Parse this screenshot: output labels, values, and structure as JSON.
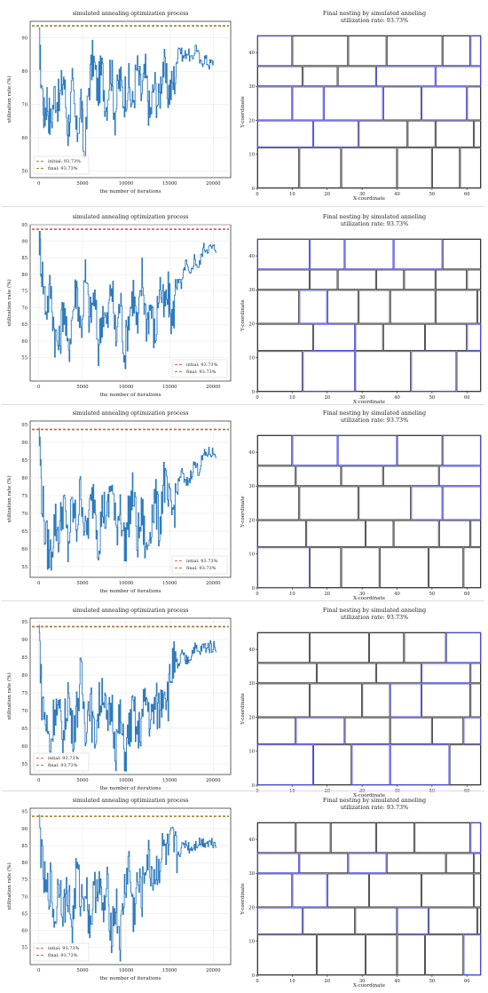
{
  "figures": [
    {
      "sa": {
        "type": "line",
        "title": "simulated annealing optimization process",
        "xlabel": "the number of iterations",
        "ylabel": "utilization rate (%)",
        "xlim": [
          -1000,
          22000
        ],
        "ylim": [
          48,
          95
        ],
        "xticks": [
          0,
          5000,
          10000,
          15000,
          20000
        ],
        "yticks": [
          50,
          60,
          70,
          80,
          90
        ],
        "grid": true,
        "legend_position": "lower-left",
        "legend": [
          "initial: 93.73%",
          "final: 93.73%"
        ],
        "reference_lines": [
          {
            "name": "initial",
            "value": 93.73,
            "color": "#e0625a"
          },
          {
            "name": "final",
            "value": 93.73,
            "color": "#8a8a2a"
          }
        ],
        "line_color": "#2f7bbd",
        "series": {
          "x": [
            0,
            200,
            600,
            900,
            1300,
            1800,
            2300,
            2800,
            3300,
            3800,
            4300,
            4800,
            5200,
            5700,
            6200,
            6700,
            7200,
            7700,
            8200,
            8700,
            9200,
            9700,
            10200,
            10700,
            11200,
            11700,
            12200,
            12700,
            13200,
            13700,
            14200,
            14700,
            15200,
            15700,
            16000,
            16500,
            17000,
            17500,
            18000,
            18500,
            19000,
            19500,
            20000
          ],
          "y": [
            93,
            80,
            66,
            72,
            64,
            74,
            70,
            79,
            62,
            75,
            60,
            72,
            52,
            76,
            84,
            74,
            80,
            70,
            82,
            67,
            78,
            72,
            77,
            69,
            81,
            73,
            79,
            66,
            76,
            70,
            83,
            74,
            75,
            80,
            88,
            84,
            86,
            83,
            88,
            82,
            84,
            82,
            83
          ]
        }
      },
      "nest": {
        "title_line1": "Final nesting by simulated anneling",
        "title_line2": "utilization rate: 93.73%",
        "xlabel": "X-coordinate",
        "ylabel": "Y-coordinate",
        "xlim": [
          0,
          64
        ],
        "ylim": [
          0,
          45
        ],
        "xticks": [
          0,
          10,
          20,
          30,
          40,
          50,
          60
        ],
        "yticks": [
          0,
          10,
          20,
          30,
          40
        ]
      }
    },
    {
      "sa": {
        "type": "line",
        "title": "simulated annealing optimization process",
        "xlabel": "the number of iterations",
        "ylabel": "utilization rate (%)",
        "xlim": [
          -1000,
          22000
        ],
        "ylim": [
          48,
          95
        ],
        "xticks": [
          0,
          5000,
          10000,
          15000,
          20000
        ],
        "yticks": [
          55,
          60,
          65,
          70,
          75,
          80,
          85,
          90,
          95
        ],
        "grid": true,
        "legend_position": "lower-right",
        "legend": [
          "intial: 93.73%",
          "final: 93.73%"
        ],
        "reference_lines": [
          {
            "name": "intial",
            "value": 93.73,
            "color": "#e0625a"
          },
          {
            "name": "final",
            "value": 93.73,
            "color": "#8a8a2a"
          }
        ],
        "line_color": "#2f7bbd",
        "series": {
          "x": [
            0,
            300,
            800,
            1300,
            1800,
            2300,
            2800,
            3300,
            3800,
            4300,
            4800,
            5300,
            5800,
            6300,
            6800,
            7300,
            7800,
            8300,
            8800,
            9300,
            9800,
            10300,
            10800,
            11300,
            11800,
            12300,
            12800,
            13300,
            13800,
            14300,
            14800,
            15300,
            15800,
            16300,
            16800,
            17300,
            17800,
            18300,
            18800,
            19300,
            19800,
            20300
          ],
          "y": [
            93,
            82,
            70,
            76,
            62,
            58,
            72,
            56,
            68,
            77,
            63,
            80,
            66,
            74,
            58,
            70,
            64,
            78,
            60,
            73,
            56,
            68,
            75,
            62,
            80,
            66,
            71,
            60,
            78,
            69,
            74,
            65,
            80,
            76,
            84,
            79,
            85,
            82,
            88,
            88,
            88,
            88
          ]
        }
      },
      "nest": {
        "title_line1": "Final nesting by simulated anneling",
        "title_line2": "utilization rate: 93.73%",
        "xlabel": "X-coordinate",
        "ylabel": "Y-coordinate",
        "xlim": [
          0,
          64
        ],
        "ylim": [
          0,
          45
        ],
        "xticks": [
          0,
          10,
          20,
          30,
          40,
          50,
          60
        ],
        "yticks": [
          0,
          10,
          20,
          30,
          40
        ]
      }
    },
    {
      "sa": {
        "type": "line",
        "title": "simulated annealing optimization process",
        "xlabel": "the number of iterations",
        "ylabel": "utilization rate (%)",
        "xlim": [
          -1000,
          22000
        ],
        "ylim": [
          52,
          96
        ],
        "xticks": [
          0,
          5000,
          10000,
          15000,
          20000
        ],
        "yticks": [
          55,
          60,
          65,
          70,
          75,
          80,
          85,
          90,
          95
        ],
        "grid": true,
        "legend_position": "lower-right",
        "legend": [
          "intial: 93.73%",
          "final: 93.73%"
        ],
        "reference_lines": [
          {
            "name": "intial",
            "value": 93.73,
            "color": "#e0625a"
          },
          {
            "name": "final",
            "value": 93.73,
            "color": "#8a8a2a"
          }
        ],
        "line_color": "#2f7bbd",
        "series": {
          "x": [
            0,
            300,
            800,
            1300,
            1800,
            2300,
            2800,
            3300,
            3800,
            4300,
            4800,
            5300,
            5800,
            6300,
            6800,
            7300,
            7800,
            8300,
            8800,
            9300,
            9800,
            10300,
            10800,
            11300,
            11800,
            12300,
            12800,
            13300,
            13800,
            14300,
            14800,
            15300,
            15800,
            16300,
            16800,
            17300,
            17800,
            18300,
            18800,
            19300,
            19800,
            20300
          ],
          "y": [
            94,
            76,
            62,
            58,
            68,
            64,
            74,
            60,
            72,
            66,
            78,
            63,
            70,
            76,
            62,
            72,
            68,
            80,
            64,
            74,
            60,
            70,
            76,
            62,
            70,
            58,
            68,
            74,
            66,
            80,
            72,
            70,
            76,
            82,
            78,
            80,
            84,
            82,
            86,
            87,
            87,
            87
          ]
        }
      },
      "nest": {
        "title_line1": "Final nesting by simulated anneling",
        "title_line2": "utilization rate: 93.73%",
        "xlabel": "X-coordinate",
        "ylabel": "Y-coordinate",
        "xlim": [
          0,
          64
        ],
        "ylim": [
          0,
          45
        ],
        "xticks": [
          0,
          10,
          20,
          30,
          40,
          50,
          60
        ],
        "yticks": [
          0,
          10,
          20,
          30,
          40
        ]
      }
    },
    {
      "sa": {
        "type": "line",
        "title": "simulated annealing optimization process",
        "xlabel": "the number of iterations",
        "ylabel": "utilization rate (%)",
        "xlim": [
          -1000,
          22000
        ],
        "ylim": [
          52,
          96
        ],
        "xticks": [
          0,
          5000,
          10000,
          15000,
          20000
        ],
        "yticks": [
          55,
          60,
          65,
          70,
          75,
          80,
          85,
          90,
          95
        ],
        "grid": true,
        "legend_position": "lower-left",
        "legend": [
          "intial: 93.73%",
          "final: 93.73%"
        ],
        "reference_lines": [
          {
            "name": "intial",
            "value": 93.73,
            "color": "#e0625a"
          },
          {
            "name": "final",
            "value": 93.73,
            "color": "#8a8a2a"
          }
        ],
        "line_color": "#2f7bbd",
        "series": {
          "x": [
            0,
            300,
            800,
            1300,
            1800,
            2300,
            2800,
            3300,
            3800,
            4300,
            4800,
            5300,
            5800,
            6300,
            6800,
            7300,
            7800,
            8300,
            8800,
            9300,
            9800,
            10300,
            10800,
            11300,
            11800,
            12300,
            12800,
            13300,
            13800,
            14300,
            14800,
            15300,
            15800,
            16300,
            16800,
            17300,
            17800,
            18300,
            18800,
            19300,
            19800,
            20300
          ],
          "y": [
            94,
            74,
            66,
            60,
            72,
            68,
            62,
            76,
            64,
            70,
            80,
            66,
            74,
            62,
            70,
            78,
            64,
            72,
            60,
            68,
            56,
            64,
            70,
            62,
            68,
            74,
            66,
            72,
            70,
            78,
            74,
            84,
            80,
            86,
            84,
            85,
            88,
            86,
            88,
            88,
            88,
            88
          ]
        }
      },
      "nest": {
        "title_line1": "Final nesting by simulated anneling",
        "title_line2": "utilization rate: 93.73%",
        "xlabel": "X-coordinate",
        "ylabel": "Y-coordinate",
        "xlim": [
          0,
          64
        ],
        "ylim": [
          0,
          45
        ],
        "xticks": [
          0,
          10,
          20,
          30,
          40,
          50,
          60
        ],
        "yticks": [
          0,
          10,
          20,
          30,
          40
        ]
      }
    },
    {
      "sa": {
        "type": "line",
        "title": "simulated annealing optimization process",
        "xlabel": "the number of iterations",
        "ylabel": "utilization rate (%)",
        "xlim": [
          -1000,
          22000
        ],
        "ylim": [
          50,
          96
        ],
        "xticks": [
          0,
          5000,
          10000,
          15000,
          20000
        ],
        "yticks": [
          55,
          60,
          65,
          70,
          75,
          80,
          85,
          90,
          95
        ],
        "grid": true,
        "legend_position": "lower-left",
        "legend": [
          "intial: 93.73%",
          "final: 93.73%"
        ],
        "reference_lines": [
          {
            "name": "intial",
            "value": 93.73,
            "color": "#e0625a"
          },
          {
            "name": "final",
            "value": 93.73,
            "color": "#8a8a2a"
          }
        ],
        "line_color": "#2f7bbd",
        "series": {
          "x": [
            0,
            300,
            800,
            1300,
            1800,
            2300,
            2800,
            3300,
            3800,
            4300,
            4800,
            5300,
            5800,
            6300,
            6800,
            7300,
            7800,
            8300,
            8800,
            9300,
            9800,
            10300,
            10800,
            11300,
            11800,
            12300,
            12800,
            13300,
            13800,
            14300,
            14800,
            15300,
            15800,
            16300,
            16800,
            17300,
            17800,
            18300,
            18800,
            19300,
            19800,
            20300
          ],
          "y": [
            94,
            80,
            70,
            74,
            62,
            76,
            66,
            72,
            60,
            78,
            68,
            74,
            62,
            70,
            76,
            64,
            72,
            60,
            68,
            56,
            72,
            80,
            64,
            74,
            70,
            82,
            78,
            76,
            80,
            84,
            82,
            85,
            82,
            84,
            86,
            84,
            85,
            86,
            86,
            86,
            86,
            86
          ]
        }
      },
      "nest": {
        "title_line1": "Final nesting by simulated anneling",
        "title_line2": "utilization rate: 93.73%",
        "xlabel": "X-coordinate",
        "ylabel": "Y-coordinate",
        "xlim": [
          0,
          64
        ],
        "ylim": [
          0,
          45
        ],
        "xticks": [
          0,
          10,
          20,
          30,
          40,
          50,
          60
        ],
        "yticks": [
          0,
          10,
          20,
          30,
          40
        ]
      }
    }
  ]
}
